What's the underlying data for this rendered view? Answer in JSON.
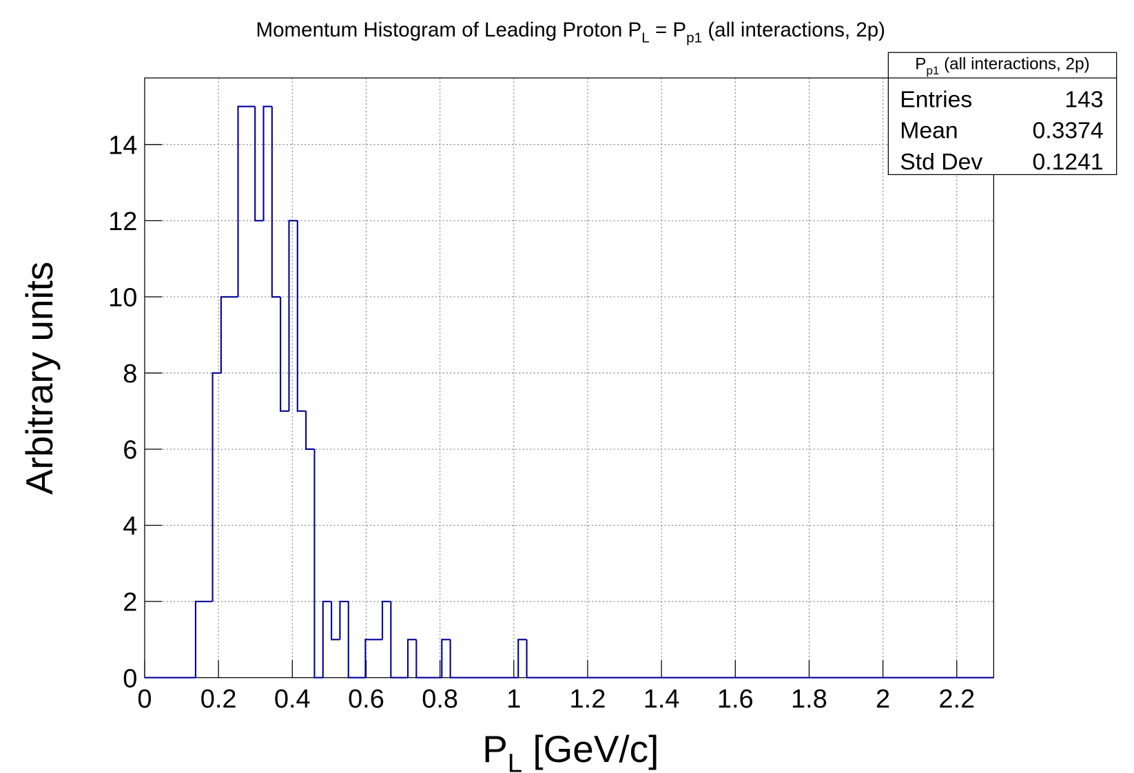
{
  "chart_data": {
    "type": "histogram",
    "title": [
      "Momentum Histogram of Leading Proton P",
      "L",
      " = P",
      "p1",
      " (all interactions, 2p)"
    ],
    "xlabel": [
      "P",
      "L",
      " [GeV/c]"
    ],
    "ylabel": "Arbitrary units",
    "color": "#000099",
    "bins": [
      0,
      0.023,
      0.046,
      0.069,
      0.092,
      0.115,
      0.138,
      0.161,
      0.184,
      0.207,
      0.23,
      0.253,
      0.276,
      0.299,
      0.322,
      0.345,
      0.368,
      0.391,
      0.414,
      0.437,
      0.46,
      0.483,
      0.506,
      0.529,
      0.552,
      0.575,
      0.598,
      0.621,
      0.644,
      0.667,
      0.69,
      0.713,
      0.736,
      0.759,
      0.782,
      0.805,
      0.828,
      0.851,
      0.874,
      0.897,
      0.92,
      0.943,
      0.966,
      0.989,
      1.012,
      1.035,
      1.058,
      1.081,
      1.104,
      1.127,
      1.15,
      1.173,
      1.196,
      1.219,
      1.242,
      1.265,
      1.288,
      1.311,
      1.334,
      1.357,
      1.38,
      1.403,
      1.426,
      1.449,
      1.472,
      1.495,
      1.518,
      1.541,
      1.564,
      1.587,
      1.61,
      1.633,
      1.656,
      1.679,
      1.702,
      1.725,
      1.748,
      1.771,
      1.794,
      1.817,
      1.84,
      1.863,
      1.886,
      1.909,
      1.932,
      1.955,
      1.978,
      2.001,
      2.024,
      2.047,
      2.07,
      2.093,
      2.116,
      2.139,
      2.162,
      2.185,
      2.208,
      2.231,
      2.254,
      2.277,
      2.3
    ],
    "counts": [
      0,
      0,
      0,
      0,
      0,
      0,
      2,
      2,
      8,
      10,
      10,
      15,
      15,
      12,
      15,
      10,
      7,
      12,
      7,
      6,
      0,
      2,
      1,
      2,
      0,
      0,
      1,
      1,
      2,
      0,
      0,
      1,
      0,
      0,
      0,
      1,
      0,
      0,
      0,
      0,
      0,
      0,
      0,
      0,
      1,
      0,
      0,
      0,
      0,
      0,
      0,
      0,
      0,
      0,
      0,
      0,
      0,
      0,
      0,
      0,
      0,
      0,
      0,
      0,
      0,
      0,
      0,
      0,
      0,
      0,
      0,
      0,
      0,
      0,
      0,
      0,
      0,
      0,
      0,
      0,
      0,
      0,
      0,
      0,
      0,
      0,
      0,
      0,
      0,
      0,
      0,
      0,
      0,
      0,
      0,
      0,
      0,
      0,
      0,
      0
    ],
    "xlim": [
      0,
      2.3
    ],
    "ylim": [
      0,
      15.75
    ],
    "xticks": [
      0,
      0.2,
      0.4,
      0.6,
      0.8,
      1,
      1.2,
      1.4,
      1.6,
      1.8,
      2,
      2.2
    ],
    "yticks": [
      0,
      2,
      4,
      6,
      8,
      10,
      12,
      14
    ],
    "grid": true,
    "stats": {
      "title": [
        "P",
        "p1",
        " (all interactions, 2p)"
      ],
      "rows": [
        {
          "label": "Entries",
          "value": 143
        },
        {
          "label": "Mean",
          "value": 0.3374
        },
        {
          "label": "Std Dev",
          "value": 0.1241
        }
      ]
    }
  }
}
